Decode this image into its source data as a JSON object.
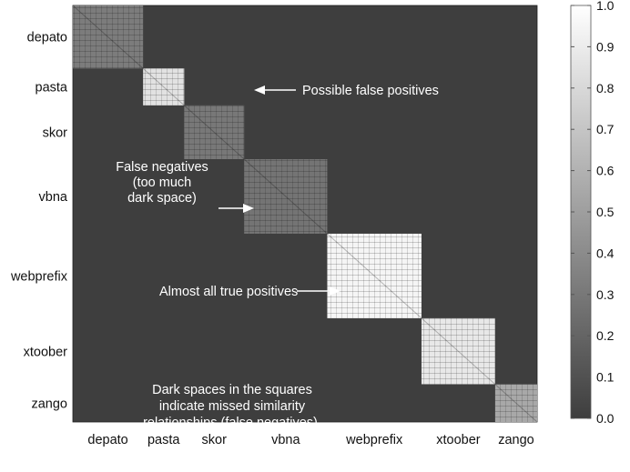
{
  "chart_data": {
    "type": "heatmap",
    "title": "",
    "xlabel": "",
    "ylabel": "",
    "categories": [
      "depato",
      "pasta",
      "skor",
      "vbna",
      "webprefix",
      "xtoober",
      "zango"
    ],
    "cluster_sizes": [
      82,
      48,
      70,
      97,
      110,
      86,
      49
    ],
    "cluster_mean_similarity": [
      0.32,
      0.85,
      0.3,
      0.28,
      0.95,
      0.88,
      0.55
    ],
    "background_similarity": 0.07,
    "colorbar": {
      "range": [
        0.0,
        1.0
      ],
      "ticks": [
        "0.0",
        "0.1",
        "0.2",
        "0.3",
        "0.4",
        "0.5",
        "0.6",
        "0.7",
        "0.8",
        "0.9",
        "1.0"
      ],
      "colors": {
        "low": "#3e3e3e",
        "high": "#ffffff"
      }
    },
    "annotations": [
      {
        "text": "Possible false positives",
        "target": "pasta"
      },
      {
        "text": "False negatives\n(too much\ndark space)",
        "target": "vbna"
      },
      {
        "text": "Almost all true positives",
        "target": "webprefix"
      },
      {
        "text": "Dark spaces in the squares\nindicate missed similarity\nrelationships (false negatives).",
        "target": "xtoober"
      }
    ]
  }
}
